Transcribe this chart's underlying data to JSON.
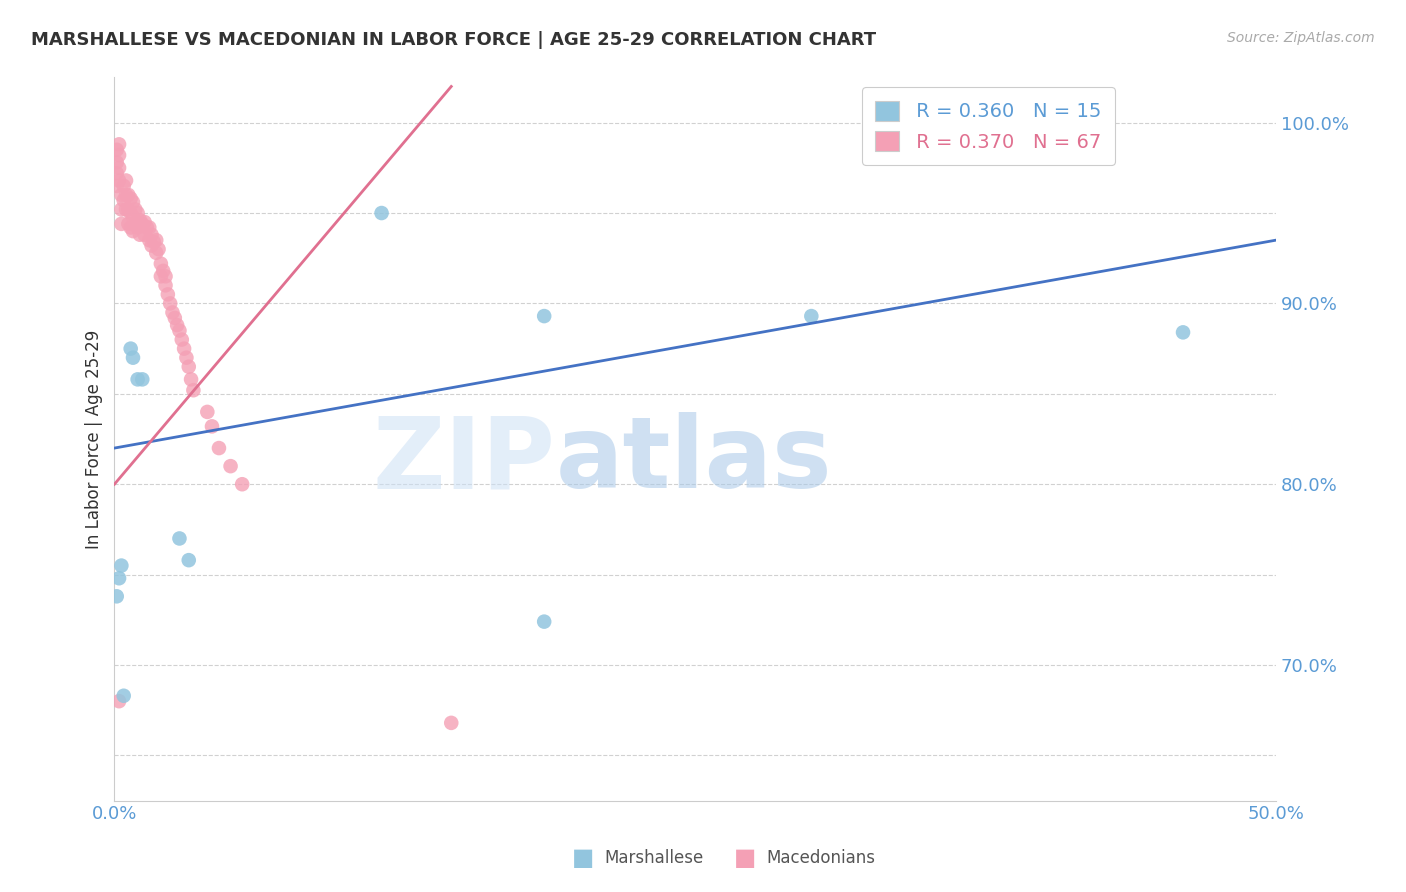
{
  "title": "MARSHALLESE VS MACEDONIAN IN LABOR FORCE | AGE 25-29 CORRELATION CHART",
  "source": "Source: ZipAtlas.com",
  "ylabel": "In Labor Force | Age 25-29",
  "xlim": [
    0.0,
    0.5
  ],
  "ylim": [
    0.625,
    1.025
  ],
  "blue_R": "R = 0.360",
  "blue_N": "N = 15",
  "pink_R": "R = 0.370",
  "pink_N": "N = 67",
  "blue_color": "#92c5de",
  "pink_color": "#f4a0b5",
  "blue_line_color": "#4472c4",
  "pink_line_color": "#e07090",
  "legend_label_blue": "Marshallese",
  "legend_label_pink": "Macedonians",
  "blue_trend_x": [
    0.0,
    0.5
  ],
  "blue_trend_y": [
    0.82,
    0.935
  ],
  "pink_trend_x": [
    0.0,
    0.145
  ],
  "pink_trend_y": [
    0.8,
    1.02
  ],
  "blue_x": [
    0.001,
    0.002,
    0.003,
    0.004,
    0.007,
    0.008,
    0.01,
    0.012,
    0.028,
    0.032,
    0.115,
    0.185,
    0.3,
    0.46,
    0.185
  ],
  "blue_y": [
    0.738,
    0.748,
    0.755,
    0.683,
    0.875,
    0.87,
    0.858,
    0.858,
    0.77,
    0.758,
    0.95,
    0.724,
    0.893,
    0.884,
    0.893
  ],
  "pink_x": [
    0.001,
    0.001,
    0.001,
    0.001,
    0.002,
    0.002,
    0.002,
    0.002,
    0.003,
    0.003,
    0.003,
    0.004,
    0.004,
    0.005,
    0.005,
    0.005,
    0.006,
    0.006,
    0.006,
    0.007,
    0.007,
    0.007,
    0.008,
    0.008,
    0.008,
    0.009,
    0.009,
    0.01,
    0.01,
    0.011,
    0.011,
    0.012,
    0.013,
    0.013,
    0.014,
    0.015,
    0.015,
    0.016,
    0.016,
    0.017,
    0.018,
    0.018,
    0.019,
    0.02,
    0.02,
    0.021,
    0.022,
    0.022,
    0.023,
    0.024,
    0.025,
    0.026,
    0.027,
    0.028,
    0.029,
    0.03,
    0.031,
    0.032,
    0.033,
    0.034,
    0.04,
    0.042,
    0.045,
    0.05,
    0.055,
    0.145,
    0.002
  ],
  "pink_y": [
    0.985,
    0.978,
    0.972,
    0.965,
    0.988,
    0.982,
    0.975,
    0.968,
    0.96,
    0.952,
    0.944,
    0.965,
    0.957,
    0.968,
    0.96,
    0.952,
    0.96,
    0.952,
    0.944,
    0.958,
    0.95,
    0.942,
    0.956,
    0.948,
    0.94,
    0.952,
    0.944,
    0.95,
    0.942,
    0.946,
    0.938,
    0.944,
    0.945,
    0.938,
    0.942,
    0.942,
    0.935,
    0.938,
    0.932,
    0.934,
    0.935,
    0.928,
    0.93,
    0.922,
    0.915,
    0.918,
    0.915,
    0.91,
    0.905,
    0.9,
    0.895,
    0.892,
    0.888,
    0.885,
    0.88,
    0.875,
    0.87,
    0.865,
    0.858,
    0.852,
    0.84,
    0.832,
    0.82,
    0.81,
    0.8,
    0.668,
    0.68
  ]
}
